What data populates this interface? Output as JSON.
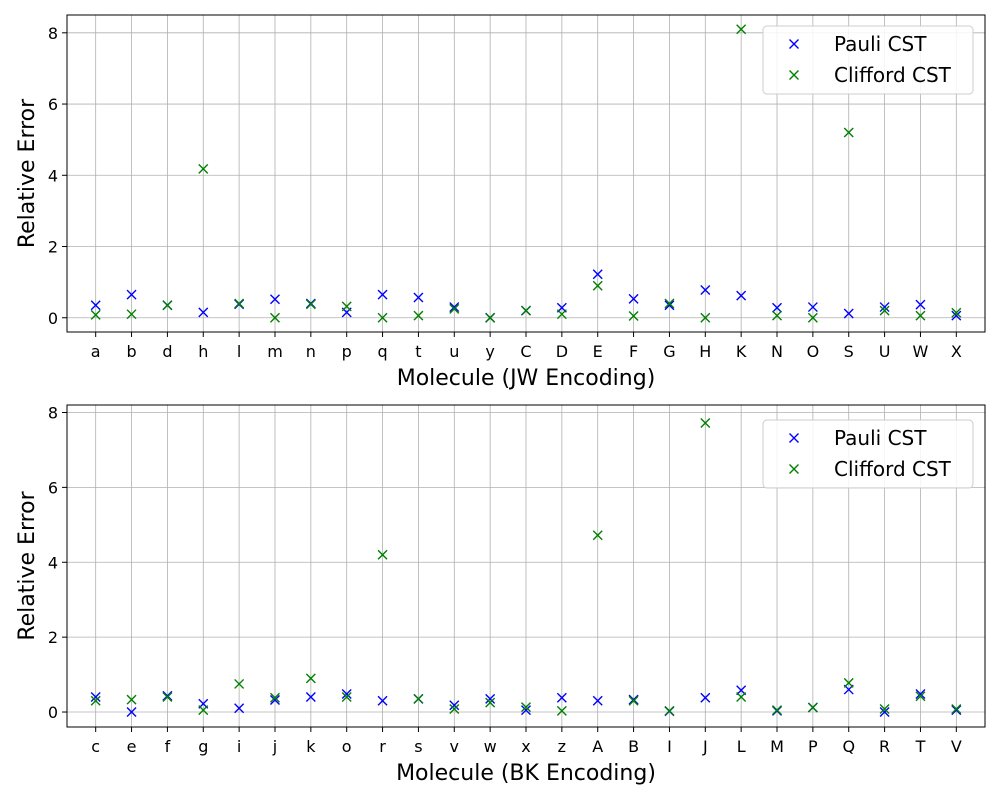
{
  "chart_data": [
    {
      "type": "scatter",
      "xlabel": "Molecule (JW Encoding)",
      "ylabel": "Relative Error",
      "categories": [
        "a",
        "b",
        "d",
        "h",
        "l",
        "m",
        "n",
        "p",
        "q",
        "t",
        "u",
        "y",
        "C",
        "D",
        "E",
        "F",
        "G",
        "H",
        "K",
        "N",
        "O",
        "S",
        "U",
        "W",
        "X"
      ],
      "ylim": [
        -0.4,
        8.5
      ],
      "yticks": [
        0,
        2,
        4,
        6,
        8
      ],
      "grid": true,
      "legend": "top-right",
      "series": [
        {
          "name": "Pauli CST",
          "marker": "x",
          "color": "#0000ff",
          "values": [
            0.35,
            0.65,
            0.35,
            0.15,
            0.38,
            0.52,
            0.4,
            0.15,
            0.65,
            0.57,
            0.3,
            0.0,
            0.2,
            0.28,
            1.22,
            0.53,
            0.35,
            0.78,
            0.62,
            0.28,
            0.3,
            0.12,
            0.3,
            0.37,
            0.06
          ]
        },
        {
          "name": "Clifford CST",
          "marker": "x",
          "color": "#008000",
          "values": [
            0.08,
            0.1,
            0.35,
            4.18,
            0.4,
            0.0,
            0.38,
            0.32,
            0.0,
            0.06,
            0.25,
            0.0,
            0.2,
            0.1,
            0.9,
            0.05,
            0.4,
            0.0,
            8.1,
            0.06,
            0.0,
            5.2,
            0.2,
            0.06,
            0.14
          ]
        }
      ]
    },
    {
      "type": "scatter",
      "xlabel": "Molecule (BK Encoding)",
      "ylabel": "Relative Error",
      "categories": [
        "c",
        "e",
        "f",
        "g",
        "i",
        "j",
        "k",
        "o",
        "r",
        "s",
        "v",
        "w",
        "x",
        "z",
        "A",
        "B",
        "I",
        "J",
        "L",
        "M",
        "P",
        "Q",
        "R",
        "T",
        "V"
      ],
      "ylim": [
        -0.4,
        8.2
      ],
      "yticks": [
        0,
        2,
        4,
        6,
        8
      ],
      "grid": true,
      "legend": "top-right",
      "series": [
        {
          "name": "Pauli CST",
          "marker": "x",
          "color": "#0000ff",
          "values": [
            0.4,
            0.0,
            0.43,
            0.22,
            0.1,
            0.32,
            0.4,
            0.48,
            0.3,
            0.35,
            0.18,
            0.35,
            0.05,
            0.38,
            0.3,
            0.33,
            0.02,
            0.38,
            0.58,
            0.03,
            0.12,
            0.6,
            0.0,
            0.48,
            0.05
          ]
        },
        {
          "name": "Clifford CST",
          "marker": "x",
          "color": "#008000",
          "values": [
            0.3,
            0.33,
            0.4,
            0.05,
            0.75,
            0.38,
            0.9,
            0.4,
            4.2,
            0.35,
            0.08,
            0.25,
            0.13,
            0.03,
            4.72,
            0.3,
            0.03,
            7.72,
            0.4,
            0.05,
            0.12,
            0.78,
            0.08,
            0.42,
            0.08
          ]
        }
      ]
    }
  ]
}
